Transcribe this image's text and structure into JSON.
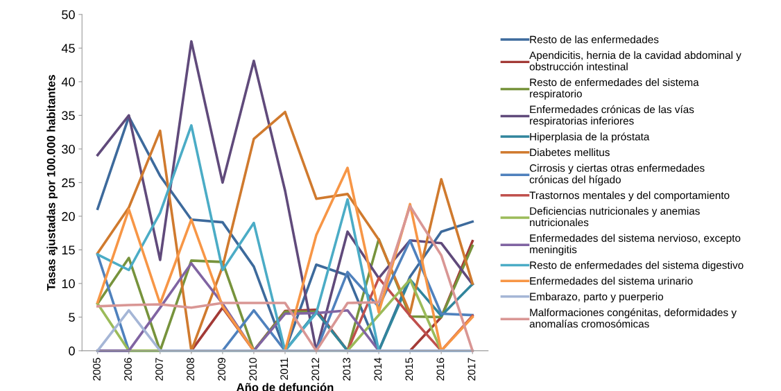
{
  "chart_data": {
    "type": "line",
    "xlabel": "Año de defunción",
    "ylabel": "Tasas ajustadas por 100.000 habitantes",
    "categories": [
      "2005",
      "2006",
      "2007",
      "2008",
      "2009",
      "2010",
      "2011",
      "2012",
      "2013",
      "2014",
      "2015",
      "2016",
      "2017"
    ],
    "ylim": [
      0,
      50
    ],
    "yticks": [
      0,
      5,
      10,
      15,
      20,
      25,
      30,
      35,
      40,
      45,
      50
    ],
    "grid": false,
    "legend": "right",
    "marker": "none",
    "line_style": "solid",
    "series": [
      {
        "name": "Resto de las enfermedades",
        "color": "#3d6a9c",
        "values": [
          21.1,
          34.8,
          26,
          19.5,
          19.1,
          12.5,
          0,
          12.8,
          11.2,
          0,
          11,
          17.7,
          19.2
        ]
      },
      {
        "name": "Apendicitis, hernia de la cavidad abdominal y obstrucción intestinal",
        "color": "#a33a36",
        "values": [
          null,
          null,
          null,
          0,
          6.4,
          0,
          5.9,
          6.1,
          0,
          0,
          0,
          5,
          16.3
        ]
      },
      {
        "name": "Resto de enfermedades del sistema respiratorio",
        "color": "#77933c",
        "values": [
          7,
          13.8,
          0,
          13.4,
          13.2,
          0,
          5.8,
          5.8,
          0,
          16.6,
          5.1,
          5,
          15.6
        ]
      },
      {
        "name": "Enfermedades crónicas de las vías respiratorias inferiores",
        "color": "#604a7b",
        "values": [
          29.1,
          35,
          13.5,
          46,
          25,
          43.1,
          23.8,
          0,
          17.7,
          10.8,
          16.4,
          16,
          9.9
        ]
      },
      {
        "name": "Hiperplasia de la próstata",
        "color": "#31859c",
        "values": [
          0,
          0,
          0,
          0,
          0,
          0,
          0,
          5.8,
          0,
          0,
          10.6,
          5.2,
          9.9
        ]
      },
      {
        "name": "Diabetes mellitus",
        "color": "#d07a2e",
        "values": [
          14.5,
          21.3,
          32.7,
          0,
          12.5,
          31.5,
          35.5,
          22.6,
          23.3,
          16.5,
          5.6,
          25.5,
          10
        ]
      },
      {
        "name": "Cirrosis y ciertas otras enfermedades crónicas del hígado",
        "color": "#4f81bd",
        "values": [
          14.3,
          0,
          0,
          0,
          0,
          6,
          0,
          0,
          11.7,
          6.5,
          16.4,
          5.5,
          5.3
        ]
      },
      {
        "name": "Trastornos mentales y del comportamiento",
        "color": "#c0504d",
        "values": [
          null,
          null,
          null,
          null,
          null,
          null,
          null,
          null,
          0,
          10.8,
          5.2,
          0,
          5.2
        ]
      },
      {
        "name": "Deficiencias nutricionales y anemias nutricionales",
        "color": "#9bbb59",
        "values": [
          7,
          0,
          0,
          0,
          0,
          0,
          0,
          0,
          0,
          5.3,
          10.6,
          0,
          0
        ]
      },
      {
        "name": "Enfermedades del sistema nervioso, excepto meningitis",
        "color": "#8064a2",
        "values": [
          0,
          0,
          6.4,
          13,
          7,
          0,
          5.5,
          5.6,
          6,
          0,
          0,
          0,
          0
        ]
      },
      {
        "name": "Resto de enfermedades del sistema digestivo",
        "color": "#4bacc6",
        "values": [
          14.3,
          12,
          20.5,
          33.5,
          12,
          19,
          0,
          5.6,
          22.5,
          0,
          0,
          0,
          0
        ]
      },
      {
        "name": "Enfermedades del sistema urinario",
        "color": "#f79646",
        "values": [
          7.2,
          21,
          7,
          19.5,
          6.6,
          0,
          0,
          17.2,
          27.2,
          5.7,
          21.8,
          0,
          5
        ]
      },
      {
        "name": "Embarazo, parto y puerperio",
        "color": "#a5b6d6",
        "values": [
          0,
          6,
          0,
          0,
          0,
          0,
          0,
          0,
          0,
          0,
          0,
          0,
          0
        ]
      },
      {
        "name": "Malformaciones congénitas, deformidades y anomalías cromosómicas",
        "color": "#d99694",
        "values": [
          6.6,
          6.8,
          6.9,
          6.4,
          7.1,
          7.1,
          7.1,
          0,
          7.1,
          7.2,
          21.5,
          14.2,
          0
        ]
      }
    ]
  }
}
